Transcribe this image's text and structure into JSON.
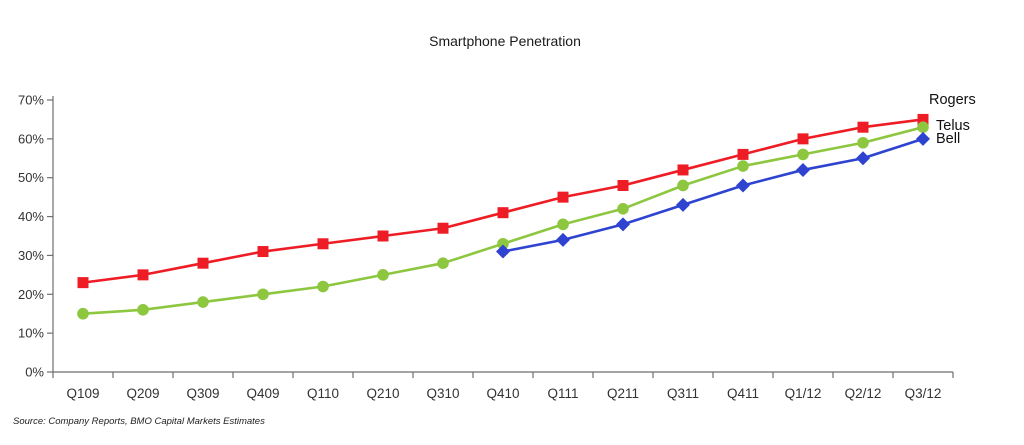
{
  "page": {
    "title": "Smartphone Penetration",
    "source": "Source: Company Reports, BMO Capital Markets Estimates"
  },
  "chart_data": {
    "type": "line",
    "title": "Smartphone Penetration",
    "categories": [
      "Q109",
      "Q209",
      "Q309",
      "Q409",
      "Q110",
      "Q210",
      "Q310",
      "Q410",
      "Q111",
      "Q211",
      "Q311",
      "Q411",
      "Q1/12",
      "Q2/12",
      "Q3/12"
    ],
    "series": [
      {
        "name": "Rogers",
        "color": "#EE1C25",
        "marker": "square",
        "values": [
          23,
          25,
          28,
          31,
          33,
          35,
          37,
          41,
          45,
          48,
          52,
          56,
          60,
          63,
          65
        ]
      },
      {
        "name": "Telus",
        "color": "#8DC63F",
        "marker": "circle",
        "values": [
          15,
          16,
          18,
          20,
          22,
          25,
          28,
          33,
          38,
          42,
          48,
          53,
          56,
          59,
          63
        ]
      },
      {
        "name": "Bell",
        "color": "#2E43D0",
        "marker": "diamond",
        "values": [
          null,
          null,
          null,
          null,
          null,
          null,
          null,
          31,
          34,
          38,
          43,
          48,
          52,
          55,
          60
        ]
      }
    ],
    "yticks": [
      {
        "value": 0,
        "label": "0%"
      },
      {
        "value": 10,
        "label": "10%"
      },
      {
        "value": 20,
        "label": "20%"
      },
      {
        "value": 30,
        "label": "30%"
      },
      {
        "value": 40,
        "label": "40%"
      },
      {
        "value": 50,
        "label": "50%"
      },
      {
        "value": 60,
        "label": "60%"
      },
      {
        "value": 70,
        "label": "70%"
      }
    ],
    "ylim": [
      0,
      70
    ],
    "xlabel": "",
    "ylabel": "",
    "grid": false,
    "legend_position": "end-of-line-labels",
    "axis_color": "#6e6e6e",
    "label_color": "#333333",
    "source": "Source: Company Reports, BMO Capital Markets Estimates"
  }
}
